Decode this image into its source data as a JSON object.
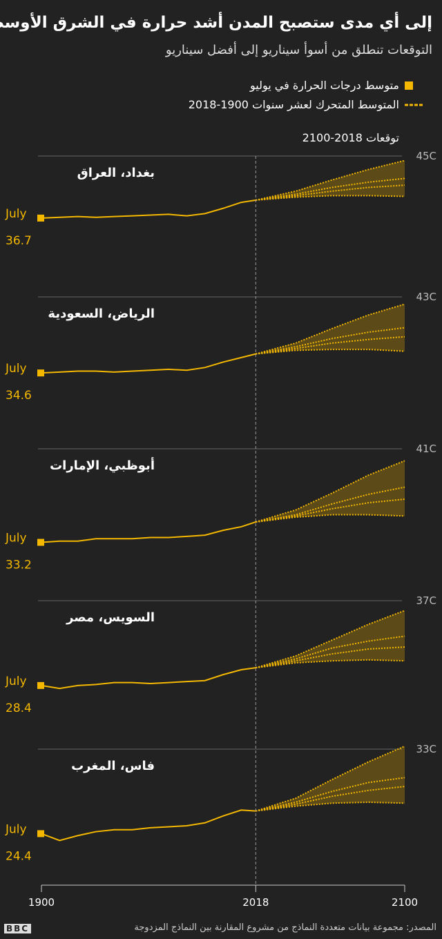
{
  "header": {
    "title": "إلى أي مدى ستصبح المدن أشد حرارة في الشرق الأوسط؟",
    "subtitle": "التوقعات تنطلق من أسوأ سيناريو إلى أفضل سيناريو"
  },
  "legend": {
    "points": "متوسط درجات الحرارة في يوليو",
    "line": "المتوسط المتحرك لعشر سنوات 1900-2018",
    "color": "#f5b800"
  },
  "projection_label": "توقعات  2018-2100",
  "footer": {
    "source": "المصدر: مجموعة بيانات متعددة النماذج من مشروع المقارنة بين النماذج المزدوجة",
    "logo": "BBC"
  },
  "chart_data": [
    {
      "type": "line",
      "title": "بغداد، العراق",
      "start_label": "July",
      "xlim": [
        1900,
        2100
      ],
      "ylim": [
        28,
        45
      ],
      "yticks": [
        {
          "value": 45,
          "label": "45C"
        }
      ],
      "color": "#f5b800",
      "split_year": 2018,
      "series": [
        {
          "name": "المتوسط المتحرك لعشر سنوات 1900-2018",
          "x": [
            1900,
            1910,
            1920,
            1930,
            1940,
            1950,
            1960,
            1970,
            1980,
            1990,
            2000,
            2010,
            2018
          ],
          "values": [
            36.7,
            36.8,
            36.9,
            36.8,
            36.9,
            37.0,
            37.1,
            37.2,
            37.0,
            37.3,
            38.0,
            38.8,
            39.1
          ]
        },
        {
          "x": [
            2018,
            2040,
            2060,
            2080,
            2100
          ],
          "values": [
            39.1,
            40.3,
            41.8,
            43.2,
            44.4
          ]
        },
        {
          "x": [
            2018,
            2040,
            2060,
            2080,
            2100
          ],
          "values": [
            39.1,
            39.9,
            40.8,
            41.5,
            42.0
          ]
        },
        {
          "x": [
            2018,
            2040,
            2060,
            2080,
            2100
          ],
          "values": [
            39.1,
            39.7,
            40.3,
            40.8,
            41.1
          ]
        },
        {
          "x": [
            2018,
            2040,
            2060,
            2080,
            2100
          ],
          "values": [
            39.1,
            39.5,
            39.7,
            39.7,
            39.6
          ]
        }
      ]
    },
    {
      "type": "line",
      "title": "الرياض، السعودية",
      "start_label": "July",
      "xlim": [
        1900,
        2100
      ],
      "ylim": [
        27.6,
        43
      ],
      "yticks": [
        {
          "value": 43,
          "label": "43C"
        }
      ],
      "color": "#f5b800",
      "split_year": 2018,
      "series": [
        {
          "name": "المتوسط المتحرك لعشر سنوات 1900-2018",
          "x": [
            1900,
            1910,
            1920,
            1930,
            1940,
            1950,
            1960,
            1970,
            1980,
            1990,
            2000,
            2010,
            2018
          ],
          "values": [
            34.6,
            34.7,
            34.8,
            34.8,
            34.7,
            34.8,
            34.9,
            35.0,
            34.9,
            35.2,
            35.8,
            36.3,
            36.7
          ]
        },
        {
          "x": [
            2018,
            2040,
            2060,
            2080,
            2100
          ],
          "values": [
            36.7,
            37.9,
            39.5,
            41.0,
            42.2
          ]
        },
        {
          "x": [
            2018,
            2040,
            2060,
            2080,
            2100
          ],
          "values": [
            36.7,
            37.5,
            38.4,
            39.1,
            39.6
          ]
        },
        {
          "x": [
            2018,
            2040,
            2060,
            2080,
            2100
          ],
          "values": [
            36.7,
            37.3,
            37.9,
            38.3,
            38.6
          ]
        },
        {
          "x": [
            2018,
            2040,
            2060,
            2080,
            2100
          ],
          "values": [
            36.7,
            37.1,
            37.2,
            37.2,
            37.0
          ]
        }
      ]
    },
    {
      "type": "line",
      "title": "أبوظبي، الإمارات",
      "start_label": "July",
      "xlim": [
        1900,
        2100
      ],
      "ylim": [
        29.2,
        41
      ],
      "yticks": [
        {
          "value": 41,
          "label": "41C"
        }
      ],
      "color": "#f5b800",
      "split_year": 2018,
      "series": [
        {
          "name": "المتوسط المتحرك لعشر سنوات 1900-2018",
          "x": [
            1900,
            1910,
            1920,
            1930,
            1940,
            1950,
            1960,
            1970,
            1980,
            1990,
            2000,
            2010,
            2018
          ],
          "values": [
            33.2,
            33.3,
            33.3,
            33.5,
            33.5,
            33.5,
            33.6,
            33.6,
            33.7,
            33.8,
            34.2,
            34.5,
            34.9
          ]
        },
        {
          "x": [
            2018,
            2040,
            2060,
            2080,
            2100
          ],
          "values": [
            34.9,
            35.9,
            37.3,
            38.8,
            40.0
          ]
        },
        {
          "x": [
            2018,
            2040,
            2060,
            2080,
            2100
          ],
          "values": [
            34.9,
            35.5,
            36.4,
            37.2,
            37.8
          ]
        },
        {
          "x": [
            2018,
            2040,
            2060,
            2080,
            2100
          ],
          "values": [
            34.9,
            35.4,
            36.0,
            36.5,
            36.8
          ]
        },
        {
          "x": [
            2018,
            2040,
            2060,
            2080,
            2100
          ],
          "values": [
            34.9,
            35.3,
            35.5,
            35.5,
            35.4
          ]
        }
      ]
    },
    {
      "type": "line",
      "title": "السويس، مصر",
      "start_label": "July",
      "xlim": [
        1900,
        2100
      ],
      "ylim": [
        23,
        37
      ],
      "yticks": [
        {
          "value": 37,
          "label": "37C"
        }
      ],
      "color": "#f5b800",
      "split_year": 2018,
      "series": [
        {
          "name": "المتوسط المتحرك لعشر سنوات 1900-2018",
          "x": [
            1900,
            1910,
            1920,
            1930,
            1940,
            1950,
            1960,
            1970,
            1980,
            1990,
            2000,
            2010,
            2018
          ],
          "values": [
            28.4,
            28.1,
            28.4,
            28.5,
            28.7,
            28.7,
            28.6,
            28.7,
            28.8,
            28.9,
            29.5,
            30.0,
            30.2
          ]
        },
        {
          "x": [
            2018,
            2040,
            2060,
            2080,
            2100
          ],
          "values": [
            30.2,
            31.4,
            33.0,
            34.6,
            36.0
          ]
        },
        {
          "x": [
            2018,
            2040,
            2060,
            2080,
            2100
          ],
          "values": [
            30.2,
            31.1,
            32.2,
            32.9,
            33.4
          ]
        },
        {
          "x": [
            2018,
            2040,
            2060,
            2080,
            2100
          ],
          "values": [
            30.2,
            30.9,
            31.6,
            32.1,
            32.3
          ]
        },
        {
          "x": [
            2018,
            2040,
            2060,
            2080,
            2100
          ],
          "values": [
            30.2,
            30.7,
            30.9,
            31.0,
            30.9
          ]
        }
      ]
    },
    {
      "type": "line",
      "title": "فاس، المغرب",
      "start_label": "July",
      "xlim": [
        1900,
        2100
      ],
      "ylim": [
        19.3,
        33
      ],
      "yticks": [
        {
          "value": 33,
          "label": "33C"
        }
      ],
      "color": "#f5b800",
      "split_year": 2018,
      "xticks": [
        1900,
        2018,
        2100
      ],
      "series": [
        {
          "name": "المتوسط المتحرك لعشر سنوات 1900-2018",
          "x": [
            1900,
            1910,
            1920,
            1930,
            1940,
            1950,
            1960,
            1970,
            1980,
            1990,
            2000,
            2010,
            2018
          ],
          "values": [
            24.4,
            23.7,
            24.2,
            24.6,
            24.8,
            24.8,
            25.0,
            25.1,
            25.2,
            25.5,
            26.2,
            26.8,
            26.7
          ]
        },
        {
          "x": [
            2018,
            2040,
            2060,
            2080,
            2100
          ],
          "values": [
            26.7,
            28.0,
            29.9,
            31.7,
            33.3
          ]
        },
        {
          "x": [
            2018,
            2040,
            2060,
            2080,
            2100
          ],
          "values": [
            26.7,
            27.6,
            28.7,
            29.6,
            30.1
          ]
        },
        {
          "x": [
            2018,
            2040,
            2060,
            2080,
            2100
          ],
          "values": [
            26.7,
            27.4,
            28.2,
            28.8,
            29.2
          ]
        },
        {
          "x": [
            2018,
            2040,
            2060,
            2080,
            2100
          ],
          "values": [
            26.7,
            27.2,
            27.5,
            27.6,
            27.5
          ]
        }
      ]
    }
  ]
}
